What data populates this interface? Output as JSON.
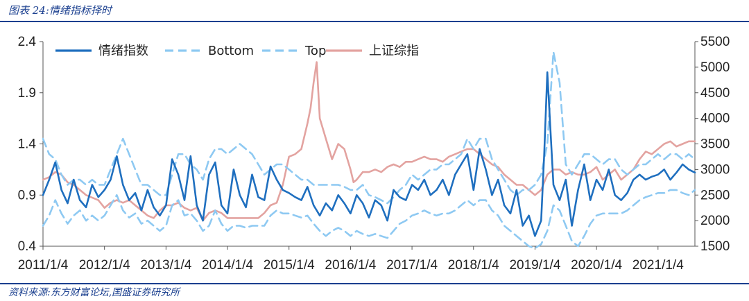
{
  "header": {
    "title": "图表 24:情绪指标择时"
  },
  "footer": {
    "source": "资料来源:东方财富论坛,国盛证券研究所"
  },
  "colors": {
    "sentiment": "#1f6fbf",
    "band": "#8ec9f2",
    "index": "#e3a3a0",
    "rule": "#1a3f8f",
    "axis": "#555555"
  },
  "chart_data": {
    "type": "line",
    "title": "",
    "xlabel": "",
    "ylabel": "",
    "x_ticks": [
      "2011/1/4",
      "2012/1/4",
      "2013/1/4",
      "2014/1/4",
      "2015/1/4",
      "2016/1/4",
      "2017/1/4",
      "2018/1/4",
      "2019/1/4",
      "2020/1/4",
      "2021/1/4"
    ],
    "y_left": {
      "range": [
        0.4,
        2.4
      ],
      "ticks": [
        "0.4",
        "0.9",
        "1.4",
        "1.9",
        "2.4"
      ]
    },
    "y_right": {
      "range": [
        1500,
        5500
      ],
      "ticks": [
        "1500",
        "2000",
        "2500",
        "3000",
        "3500",
        "4000",
        "4500",
        "5000",
        "5500"
      ]
    },
    "legend": {
      "placement": "top-left"
    },
    "x_range": [
      2011.0,
      2021.6
    ],
    "series": [
      {
        "name": "情绪指数",
        "axis": "left",
        "style": "solid",
        "x": [
          2011.0,
          2011.1,
          2011.2,
          2011.3,
          2011.4,
          2011.5,
          2011.6,
          2011.7,
          2011.8,
          2011.9,
          2012.0,
          2012.1,
          2012.2,
          2012.3,
          2012.4,
          2012.5,
          2012.6,
          2012.7,
          2012.8,
          2012.9,
          2013.0,
          2013.1,
          2013.2,
          2013.3,
          2013.4,
          2013.5,
          2013.6,
          2013.7,
          2013.8,
          2013.9,
          2014.0,
          2014.1,
          2014.2,
          2014.3,
          2014.4,
          2014.5,
          2014.6,
          2014.7,
          2014.8,
          2014.9,
          2015.0,
          2015.1,
          2015.2,
          2015.3,
          2015.4,
          2015.5,
          2015.6,
          2015.7,
          2015.8,
          2015.9,
          2016.0,
          2016.1,
          2016.2,
          2016.3,
          2016.4,
          2016.5,
          2016.6,
          2016.7,
          2016.8,
          2016.9,
          2017.0,
          2017.1,
          2017.2,
          2017.3,
          2017.4,
          2017.5,
          2017.6,
          2017.7,
          2017.8,
          2017.9,
          2018.0,
          2018.1,
          2018.2,
          2018.3,
          2018.4,
          2018.5,
          2018.6,
          2018.7,
          2018.8,
          2018.9,
          2019.0,
          2019.1,
          2019.15,
          2019.2,
          2019.3,
          2019.4,
          2019.5,
          2019.6,
          2019.7,
          2019.8,
          2019.9,
          2020.0,
          2020.1,
          2020.2,
          2020.3,
          2020.4,
          2020.5,
          2020.6,
          2020.7,
          2020.8,
          2020.9,
          2021.0,
          2021.1,
          2021.2,
          2021.3,
          2021.4,
          2021.5,
          2021.6
        ],
        "values": [
          0.9,
          1.05,
          1.22,
          0.95,
          0.82,
          1.05,
          0.85,
          0.78,
          1.0,
          0.88,
          0.95,
          1.05,
          1.28,
          1.0,
          0.85,
          0.92,
          0.75,
          0.95,
          0.78,
          0.7,
          0.8,
          1.25,
          1.1,
          0.85,
          1.28,
          0.8,
          0.65,
          1.1,
          1.22,
          0.8,
          0.72,
          1.15,
          0.9,
          0.78,
          1.1,
          0.88,
          0.85,
          1.18,
          1.05,
          0.95,
          0.92,
          0.88,
          0.85,
          0.98,
          0.8,
          0.7,
          0.82,
          0.75,
          0.9,
          0.82,
          0.72,
          0.9,
          0.82,
          0.68,
          0.85,
          0.8,
          0.65,
          0.95,
          0.88,
          0.85,
          1.0,
          0.95,
          1.05,
          0.9,
          0.95,
          1.05,
          0.9,
          1.1,
          1.2,
          1.3,
          0.95,
          1.35,
          1.15,
          0.9,
          1.05,
          0.8,
          0.72,
          0.95,
          0.6,
          0.7,
          0.5,
          0.65,
          1.3,
          2.1,
          1.0,
          0.85,
          1.05,
          0.6,
          0.95,
          1.2,
          0.85,
          1.05,
          0.95,
          1.15,
          0.9,
          0.85,
          0.92,
          1.05,
          1.1,
          1.05,
          1.08,
          1.1,
          1.15,
          1.05,
          1.12,
          1.2,
          1.15,
          1.12
        ]
      },
      {
        "name": "Bottom",
        "axis": "left",
        "style": "dashed",
        "x": [
          2011.0,
          2011.1,
          2011.2,
          2011.3,
          2011.4,
          2011.5,
          2011.6,
          2011.7,
          2011.8,
          2011.9,
          2012.0,
          2012.1,
          2012.2,
          2012.3,
          2012.4,
          2012.5,
          2012.6,
          2012.7,
          2012.8,
          2012.9,
          2013.0,
          2013.1,
          2013.2,
          2013.3,
          2013.4,
          2013.5,
          2013.6,
          2013.7,
          2013.8,
          2013.9,
          2014.0,
          2014.1,
          2014.2,
          2014.3,
          2014.4,
          2014.5,
          2014.6,
          2014.7,
          2014.8,
          2014.9,
          2015.0,
          2015.1,
          2015.2,
          2015.3,
          2015.4,
          2015.5,
          2015.6,
          2015.7,
          2015.8,
          2015.9,
          2016.0,
          2016.1,
          2016.2,
          2016.3,
          2016.4,
          2016.5,
          2016.6,
          2016.7,
          2016.8,
          2016.9,
          2017.0,
          2017.1,
          2017.2,
          2017.3,
          2017.4,
          2017.5,
          2017.6,
          2017.7,
          2017.8,
          2017.9,
          2018.0,
          2018.1,
          2018.2,
          2018.3,
          2018.4,
          2018.5,
          2018.6,
          2018.7,
          2018.8,
          2018.9,
          2019.0,
          2019.1,
          2019.2,
          2019.3,
          2019.4,
          2019.5,
          2019.6,
          2019.7,
          2019.8,
          2019.9,
          2020.0,
          2020.1,
          2020.2,
          2020.3,
          2020.4,
          2020.5,
          2020.6,
          2020.7,
          2020.8,
          2020.9,
          2021.0,
          2021.1,
          2021.2,
          2021.3,
          2021.4,
          2021.5,
          2021.6
        ],
        "values": [
          0.6,
          0.7,
          0.85,
          0.72,
          0.62,
          0.7,
          0.75,
          0.65,
          0.7,
          0.65,
          0.7,
          0.8,
          0.9,
          0.75,
          0.68,
          0.72,
          0.62,
          0.65,
          0.6,
          0.55,
          0.6,
          0.8,
          0.85,
          0.7,
          0.72,
          0.65,
          0.55,
          0.6,
          0.75,
          0.62,
          0.55,
          0.6,
          0.6,
          0.58,
          0.6,
          0.6,
          0.6,
          0.7,
          0.75,
          0.72,
          0.72,
          0.7,
          0.68,
          0.7,
          0.62,
          0.55,
          0.5,
          0.55,
          0.58,
          0.55,
          0.5,
          0.55,
          0.52,
          0.5,
          0.52,
          0.5,
          0.48,
          0.55,
          0.62,
          0.65,
          0.7,
          0.72,
          0.75,
          0.72,
          0.7,
          0.72,
          0.72,
          0.75,
          0.8,
          0.85,
          0.8,
          0.85,
          0.85,
          0.75,
          0.7,
          0.6,
          0.55,
          0.5,
          0.45,
          0.4,
          0.38,
          0.42,
          0.55,
          0.8,
          0.75,
          0.6,
          0.45,
          0.4,
          0.5,
          0.62,
          0.7,
          0.72,
          0.72,
          0.72,
          0.72,
          0.75,
          0.8,
          0.85,
          0.88,
          0.9,
          0.92,
          0.92,
          0.95,
          0.95,
          0.92,
          0.9,
          0.95
        ]
      },
      {
        "name": "Top",
        "axis": "left",
        "style": "dashed",
        "x": [
          2011.0,
          2011.1,
          2011.2,
          2011.3,
          2011.4,
          2011.5,
          2011.6,
          2011.7,
          2011.8,
          2011.9,
          2012.0,
          2012.1,
          2012.2,
          2012.3,
          2012.4,
          2012.5,
          2012.6,
          2012.7,
          2012.8,
          2012.9,
          2013.0,
          2013.1,
          2013.2,
          2013.3,
          2013.4,
          2013.5,
          2013.6,
          2013.7,
          2013.8,
          2013.9,
          2014.0,
          2014.1,
          2014.2,
          2014.3,
          2014.4,
          2014.5,
          2014.6,
          2014.7,
          2014.8,
          2014.9,
          2015.0,
          2015.1,
          2015.2,
          2015.3,
          2015.4,
          2015.5,
          2015.6,
          2015.7,
          2015.8,
          2015.9,
          2016.0,
          2016.1,
          2016.2,
          2016.3,
          2016.4,
          2016.5,
          2016.6,
          2016.7,
          2016.8,
          2016.9,
          2017.0,
          2017.1,
          2017.2,
          2017.3,
          2017.4,
          2017.5,
          2017.6,
          2017.7,
          2017.8,
          2017.9,
          2018.0,
          2018.1,
          2018.2,
          2018.3,
          2018.4,
          2018.5,
          2018.6,
          2018.7,
          2018.8,
          2018.9,
          2019.0,
          2019.1,
          2019.2,
          2019.3,
          2019.4,
          2019.5,
          2019.6,
          2019.7,
          2019.8,
          2019.9,
          2020.0,
          2020.1,
          2020.2,
          2020.3,
          2020.4,
          2020.5,
          2020.6,
          2020.7,
          2020.8,
          2020.9,
          2021.0,
          2021.1,
          2021.2,
          2021.3,
          2021.4,
          2021.5,
          2021.6
        ],
        "values": [
          1.45,
          1.3,
          1.25,
          1.1,
          1.0,
          1.05,
          1.05,
          1.0,
          1.05,
          1.0,
          1.0,
          1.15,
          1.3,
          1.45,
          1.3,
          1.15,
          1.0,
          1.0,
          0.95,
          0.9,
          0.9,
          1.1,
          1.3,
          1.3,
          1.2,
          1.15,
          1.05,
          1.25,
          1.35,
          1.35,
          1.3,
          1.35,
          1.4,
          1.35,
          1.3,
          1.2,
          1.1,
          1.15,
          1.2,
          1.2,
          1.15,
          1.1,
          1.05,
          1.05,
          1.0,
          1.0,
          1.0,
          1.0,
          1.0,
          0.98,
          0.95,
          0.95,
          1.0,
          0.9,
          0.88,
          0.85,
          0.82,
          0.88,
          0.95,
          1.0,
          1.1,
          1.05,
          1.1,
          1.15,
          1.15,
          1.2,
          1.2,
          1.25,
          1.3,
          1.45,
          1.35,
          1.45,
          1.45,
          1.25,
          1.15,
          1.05,
          0.95,
          0.9,
          0.95,
          0.95,
          1.0,
          1.1,
          1.4,
          2.3,
          2.0,
          1.2,
          1.1,
          1.2,
          1.3,
          1.3,
          1.25,
          1.2,
          1.25,
          1.25,
          1.15,
          1.1,
          1.15,
          1.2,
          1.2,
          1.25,
          1.3,
          1.25,
          1.3,
          1.3,
          1.25,
          1.3,
          1.25
        ]
      },
      {
        "name": "上证综指",
        "axis": "right",
        "style": "solid",
        "x": [
          2011.0,
          2011.1,
          2011.2,
          2011.3,
          2011.4,
          2011.5,
          2011.6,
          2011.7,
          2011.8,
          2011.9,
          2012.0,
          2012.1,
          2012.2,
          2012.3,
          2012.4,
          2012.5,
          2012.6,
          2012.7,
          2012.8,
          2012.9,
          2013.0,
          2013.1,
          2013.2,
          2013.3,
          2013.4,
          2013.5,
          2013.6,
          2013.7,
          2013.8,
          2013.9,
          2014.0,
          2014.1,
          2014.2,
          2014.3,
          2014.4,
          2014.5,
          2014.6,
          2014.7,
          2014.8,
          2014.9,
          2015.0,
          2015.1,
          2015.2,
          2015.3,
          2015.35,
          2015.4,
          2015.45,
          2015.5,
          2015.55,
          2015.6,
          2015.7,
          2015.8,
          2015.9,
          2016.0,
          2016.05,
          2016.1,
          2016.2,
          2016.3,
          2016.4,
          2016.5,
          2016.6,
          2016.7,
          2016.8,
          2016.9,
          2017.0,
          2017.1,
          2017.2,
          2017.3,
          2017.4,
          2017.5,
          2017.6,
          2017.7,
          2017.8,
          2017.9,
          2018.0,
          2018.1,
          2018.2,
          2018.3,
          2018.4,
          2018.5,
          2018.6,
          2018.7,
          2018.8,
          2018.9,
          2019.0,
          2019.1,
          2019.2,
          2019.3,
          2019.4,
          2019.5,
          2019.6,
          2019.7,
          2019.8,
          2019.9,
          2020.0,
          2020.1,
          2020.2,
          2020.3,
          2020.4,
          2020.5,
          2020.6,
          2020.7,
          2020.8,
          2020.9,
          2021.0,
          2021.1,
          2021.2,
          2021.3,
          2021.4,
          2021.5,
          2021.6
        ],
        "values": [
          2800,
          2850,
          2950,
          2900,
          2750,
          2700,
          2600,
          2500,
          2450,
          2400,
          2250,
          2350,
          2400,
          2350,
          2400,
          2300,
          2200,
          2100,
          2050,
          2200,
          2300,
          2300,
          2350,
          2250,
          2200,
          2250,
          2000,
          2150,
          2200,
          2150,
          2050,
          2050,
          2050,
          2050,
          2050,
          2050,
          2150,
          2300,
          2350,
          2700,
          3250,
          3300,
          3400,
          3900,
          4200,
          4700,
          5100,
          4000,
          3800,
          3600,
          3200,
          3500,
          3400,
          3000,
          2750,
          2800,
          2950,
          2950,
          3000,
          2950,
          3050,
          3100,
          3050,
          3150,
          3150,
          3200,
          3250,
          3200,
          3200,
          3150,
          3250,
          3300,
          3350,
          3400,
          3400,
          3300,
          3200,
          3100,
          3050,
          2900,
          2800,
          2700,
          2700,
          2600,
          2500,
          2600,
          2900,
          3000,
          3000,
          2900,
          2950,
          2900,
          2900,
          2950,
          3050,
          2800,
          2900,
          3000,
          2800,
          2900,
          3000,
          3200,
          3350,
          3300,
          3400,
          3500,
          3550,
          3450,
          3500,
          3550,
          3550
        ]
      }
    ]
  }
}
